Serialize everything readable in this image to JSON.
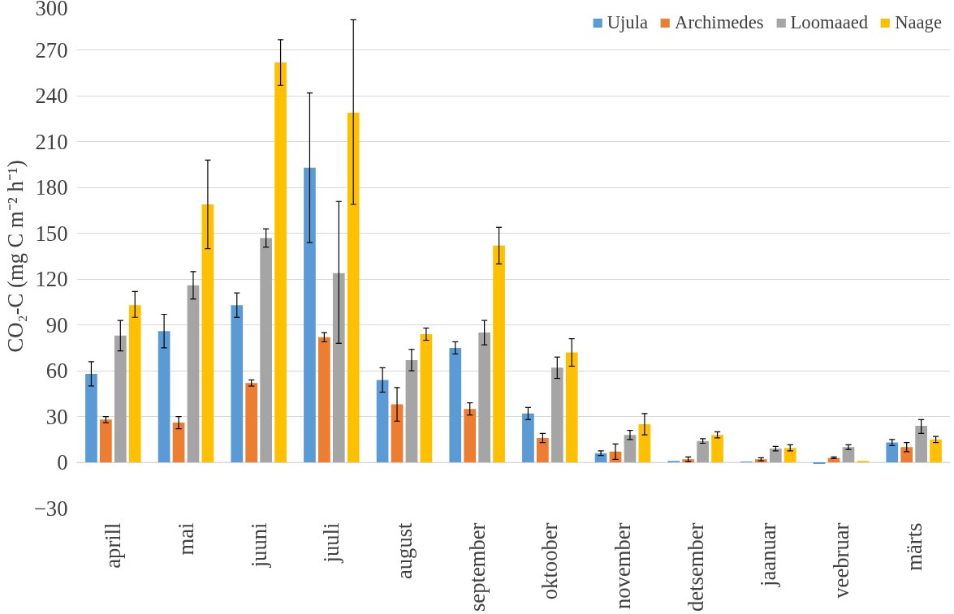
{
  "chart_data": {
    "type": "bar",
    "ylabel": "CO₂-C (mg C m⁻² h⁻¹)",
    "categories": [
      "aprill",
      "mai",
      "juuni",
      "juuli",
      "august",
      "september",
      "oktoober",
      "november",
      "detsember",
      "jaanuar",
      "veebruar",
      "märts"
    ],
    "series": [
      {
        "name": "Ujula",
        "color": "#5b9bd5",
        "values": [
          58,
          86,
          103,
          193,
          54,
          75,
          32,
          6,
          1,
          0.5,
          -1,
          13
        ],
        "errors": [
          [
            50,
            66
          ],
          [
            75,
            97
          ],
          [
            95,
            111
          ],
          [
            144,
            242
          ],
          [
            46,
            62
          ],
          [
            71,
            79
          ],
          [
            28,
            36
          ],
          [
            4.5,
            7.5
          ],
          null,
          null,
          null,
          [
            11,
            15
          ]
        ]
      },
      {
        "name": "Archimedes",
        "color": "#ed7d31",
        "values": [
          28,
          26,
          52,
          82,
          38,
          35,
          16,
          7,
          2,
          2,
          3,
          10
        ],
        "errors": [
          [
            26,
            30
          ],
          [
            22,
            30
          ],
          [
            50,
            54
          ],
          [
            79,
            85
          ],
          [
            27,
            49
          ],
          [
            31,
            39
          ],
          [
            13,
            19
          ],
          [
            2,
            12
          ],
          [
            0.5,
            3.5
          ],
          [
            1,
            3
          ],
          [
            2.5,
            3.5
          ],
          [
            7,
            13
          ]
        ]
      },
      {
        "name": "Loomaaed",
        "color": "#a5a5a5",
        "values": [
          83,
          116,
          147,
          124,
          67,
          85,
          62,
          18,
          14,
          9,
          10,
          24
        ],
        "errors": [
          [
            73,
            93
          ],
          [
            107,
            125
          ],
          [
            141,
            153
          ],
          [
            78,
            171
          ],
          [
            60,
            74
          ],
          [
            77,
            93
          ],
          [
            55,
            69
          ],
          [
            15,
            21
          ],
          [
            12.5,
            15.5
          ],
          [
            7.5,
            10.5
          ],
          [
            8.5,
            11.5
          ],
          [
            19,
            28
          ]
        ]
      },
      {
        "name": "Naage",
        "color": "#ffc000",
        "values": [
          103,
          169,
          262,
          229,
          84,
          142,
          72,
          25,
          18,
          9.5,
          1,
          15
        ],
        "errors": [
          [
            95,
            112
          ],
          [
            140,
            198
          ],
          [
            247,
            277
          ],
          [
            169,
            290
          ],
          [
            80,
            88
          ],
          [
            130,
            154
          ],
          [
            63,
            81
          ],
          [
            18,
            32
          ],
          [
            16,
            20
          ],
          [
            7.5,
            11.5
          ],
          null,
          [
            13,
            17
          ]
        ]
      }
    ],
    "ylim": [
      -30,
      300
    ],
    "yticks": [
      -30,
      0,
      30,
      60,
      90,
      120,
      150,
      180,
      210,
      240,
      270,
      300
    ],
    "grid": "y",
    "legend": "top right"
  }
}
